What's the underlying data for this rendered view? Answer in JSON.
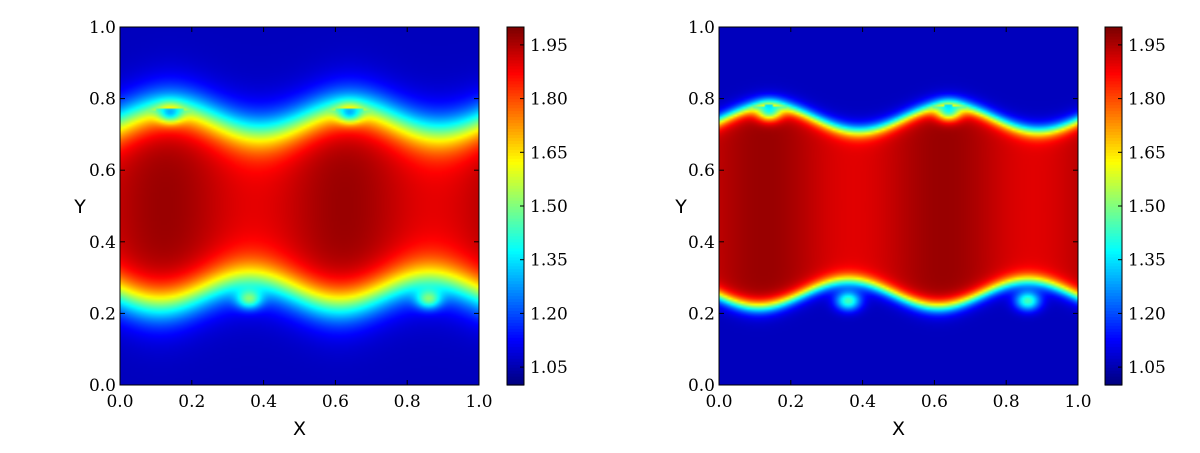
{
  "chart_data": [
    {
      "type": "heatmap",
      "title": "",
      "xlabel": "X",
      "ylabel": "Y",
      "xlim": [
        0.0,
        1.0
      ],
      "ylim": [
        0.0,
        1.0
      ],
      "x_ticks": [
        "0.0",
        "0.2",
        "0.4",
        "0.6",
        "0.8",
        "1.0"
      ],
      "y_ticks": [
        "0.0",
        "0.2",
        "0.4",
        "0.6",
        "0.8",
        "1.0"
      ],
      "colormap": "jet",
      "value_range": [
        1.0,
        2.0
      ],
      "colorbar_ticks": [
        "1.05",
        "1.20",
        "1.35",
        "1.50",
        "1.65",
        "1.80",
        "1.95"
      ],
      "field": {
        "inner_value": 2.0,
        "outer_value": 1.0,
        "upper_interface_mean_y": 0.74,
        "lower_interface_mean_y": 0.26,
        "interface_amplitude": 0.055,
        "vortex_centers_x": [
          0.14,
          0.64
        ],
        "lower_vortex_centers_x": [
          0.36,
          0.86
        ],
        "interface_thickness": 0.035
      },
      "grid": false
    },
    {
      "type": "heatmap",
      "title": "",
      "xlabel": "X",
      "ylabel": "Y",
      "xlim": [
        0.0,
        1.0
      ],
      "ylim": [
        0.0,
        1.0
      ],
      "x_ticks": [
        "0.0",
        "0.2",
        "0.4",
        "0.6",
        "0.8",
        "1.0"
      ],
      "y_ticks": [
        "0.0",
        "0.2",
        "0.4",
        "0.6",
        "0.8",
        "1.0"
      ],
      "colormap": "jet",
      "value_range": [
        1.0,
        2.0
      ],
      "colorbar_ticks": [
        "1.05",
        "1.20",
        "1.35",
        "1.50",
        "1.65",
        "1.80",
        "1.95"
      ],
      "field": {
        "inner_value": 2.0,
        "outer_value": 1.0,
        "upper_interface_mean_y": 0.745,
        "lower_interface_mean_y": 0.255,
        "interface_amplitude": 0.06,
        "vortex_centers_x": [
          0.14,
          0.64
        ],
        "lower_vortex_centers_x": [
          0.36,
          0.86
        ],
        "interface_thickness": 0.012
      },
      "grid": false
    }
  ]
}
